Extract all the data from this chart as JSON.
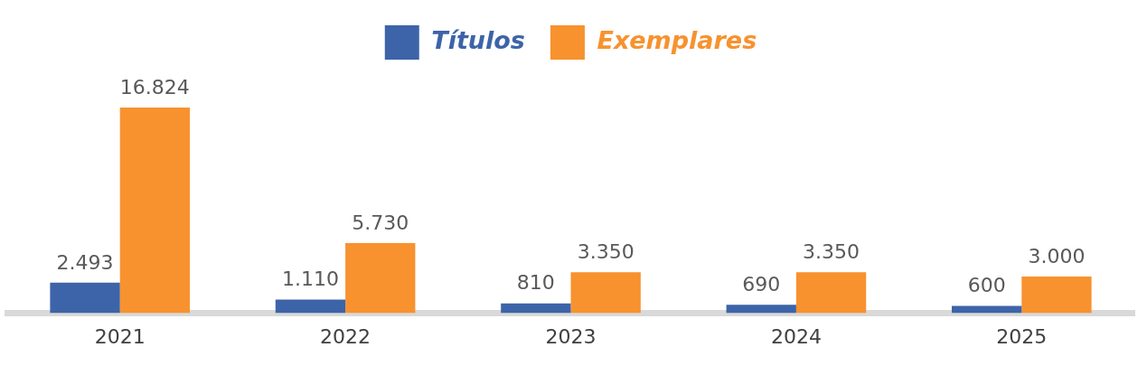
{
  "chart_data": {
    "type": "bar",
    "categories": [
      "2021",
      "2022",
      "2023",
      "2024",
      "2025"
    ],
    "series": [
      {
        "name": "Títulos",
        "color": "#3d64a8",
        "values": [
          2493,
          1110,
          810,
          690,
          600
        ],
        "value_labels": [
          "2.493",
          "1.110",
          "810",
          "690",
          "600"
        ]
      },
      {
        "name": "Exemplares",
        "color": "#f7922f",
        "values": [
          16824,
          5730,
          3350,
          3350,
          3000
        ],
        "value_labels": [
          "16.824",
          "5.730",
          "3.350",
          "3.350",
          "3.000"
        ]
      }
    ],
    "legend": "top",
    "grid": false
  }
}
